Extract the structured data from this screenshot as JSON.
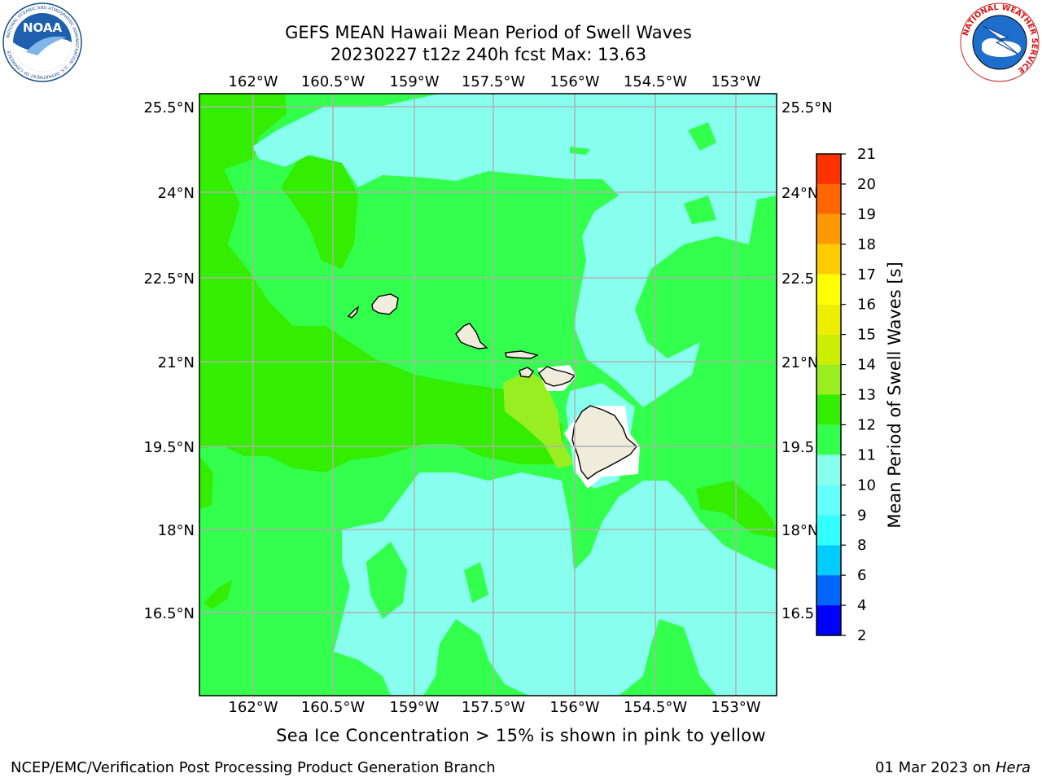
{
  "title": {
    "line1": "GEFS MEAN Hawaii Mean Period of Swell Waves",
    "line2": "20230227 t12z 240h fcst   Max: 13.63"
  },
  "logos": {
    "left": {
      "name": "noaa-logo",
      "text": "NOAA",
      "ring_text": "NATIONAL OCEANIC AND ATMOSPHERIC ADMINISTRATION · U.S. DEPARTMENT OF COMMERCE"
    },
    "right": {
      "name": "nws-logo",
      "ring_text": "NATIONAL WEATHER SERVICE"
    }
  },
  "map": {
    "lon_ticks": [
      "162°W",
      "160.5°W",
      "159°W",
      "157.5°W",
      "156°W",
      "154.5°W",
      "153°W"
    ],
    "lat_ticks": [
      "25.5°N",
      "24°N",
      "22.5°N",
      "21°N",
      "19.5°N",
      "18°N",
      "16.5°N"
    ],
    "right_lat_ticks": [
      "25.5°N",
      "24°N",
      "22.5",
      "21°N",
      "19.5",
      "18°N",
      "16.5"
    ],
    "colors": {
      "background_green": "#33ff4d",
      "dark_green": "#33ee00",
      "aqua": "#88ffee",
      "yellow_green": "#99ee22",
      "land": "#efecdc",
      "grid": "#b0b0b0"
    }
  },
  "colorbar": {
    "label": "Mean Period of Swell Waves [s]",
    "levels": [
      "2",
      "4",
      "6",
      "8",
      "9",
      "10",
      "11",
      "12",
      "13",
      "14",
      "15",
      "16",
      "17",
      "18",
      "19",
      "20",
      "21"
    ],
    "colors": [
      "#0000ff",
      "#0066ff",
      "#00ccff",
      "#33ffff",
      "#66ffff",
      "#88ffee",
      "#33ff4d",
      "#33ee00",
      "#99ee22",
      "#ccee00",
      "#eeee00",
      "#ffff00",
      "#ffcc00",
      "#ff9900",
      "#ff6600",
      "#ff3300",
      "#ff0000"
    ]
  },
  "ice_note": "Sea Ice Concentration > 15% is shown in pink to yellow",
  "footer": {
    "left": "NCEP/EMC/Verification Post Processing Product Generation Branch",
    "right_date": "01 Mar 2023 on",
    "right_host": "Hera"
  }
}
